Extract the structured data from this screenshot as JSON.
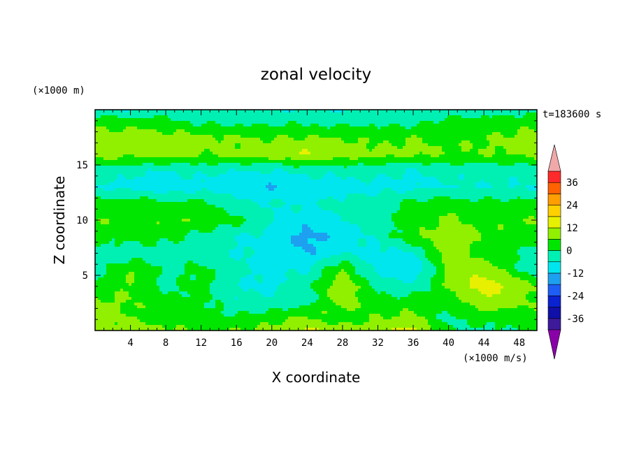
{
  "chart_data": {
    "type": "heatmap",
    "title": "zonal velocity",
    "xlabel": "X coordinate",
    "ylabel": "Z coordinate",
    "x_units": "(×1000 m/s)",
    "y_units": "(×1000 m)",
    "time_label": "t=183600 s",
    "xlim": [
      0,
      50
    ],
    "ylim": [
      0,
      20
    ],
    "x_ticks": [
      4,
      8,
      12,
      16,
      20,
      24,
      28,
      32,
      36,
      40,
      44,
      48
    ],
    "y_ticks": [
      5,
      10,
      15
    ],
    "colorbar": {
      "ticks": [
        36,
        24,
        12,
        0,
        -12,
        -24,
        -36
      ],
      "levels": [
        -42,
        -36,
        -30,
        -24,
        -18,
        -12,
        -6,
        0,
        6,
        12,
        18,
        24,
        30,
        36,
        42
      ],
      "colors": [
        "#7a0096",
        "#3d1a9a",
        "#1010a8",
        "#0a22d0",
        "#1e5ef5",
        "#1ea0f0",
        "#00e6ee",
        "#00f0b4",
        "#00e600",
        "#90f000",
        "#e6f000",
        "#ffd000",
        "#ff9e00",
        "#ff6200",
        "#ff2a2a",
        "#f0a0a8"
      ],
      "under_color": "#8a00a8",
      "over_color": "#f0a8a8"
    },
    "z_grid": {
      "nx": 13,
      "x": [
        0,
        4,
        8,
        12,
        16,
        20,
        24,
        28,
        32,
        36,
        40,
        44,
        50
      ],
      "z": [
        0,
        1,
        2.5,
        4,
        5.5,
        7,
        8.5,
        10,
        11.5,
        13,
        14.5,
        16,
        17.5,
        19,
        20
      ],
      "values": [
        [
          6,
          10,
          8,
          4,
          6,
          8,
          13,
          8,
          10,
          14,
          2,
          -2,
          2
        ],
        [
          8,
          6,
          4,
          2,
          2,
          4,
          8,
          3,
          6,
          8,
          -2,
          2,
          2
        ],
        [
          7,
          6,
          2,
          2,
          -4,
          -4,
          -2,
          9,
          2,
          3,
          2,
          10,
          6
        ],
        [
          2,
          6,
          -2,
          2,
          -6,
          -8,
          -2,
          11,
          -2,
          -4,
          6,
          16,
          6
        ],
        [
          -4,
          6,
          -2,
          2,
          -4,
          -8,
          -6,
          6,
          -8,
          -12,
          8,
          10,
          -4
        ],
        [
          -2,
          -4,
          -2,
          -4,
          -6,
          -8,
          -12,
          -6,
          -8,
          -6,
          10,
          2,
          -2
        ],
        [
          2,
          2,
          2,
          -2,
          -6,
          -8,
          -14,
          -10,
          -4,
          4,
          12,
          6,
          2
        ],
        [
          6,
          4,
          6,
          4,
          2,
          -6,
          -10,
          -6,
          -2,
          2,
          8,
          4,
          6
        ],
        [
          2,
          4,
          2,
          2,
          -4,
          -6,
          -6,
          -4,
          -2,
          2,
          4,
          2,
          2
        ],
        [
          -6,
          -8,
          -10,
          -8,
          -10,
          -12,
          -10,
          -8,
          -8,
          -8,
          -6,
          -6,
          -6
        ],
        [
          -2,
          -4,
          -6,
          -4,
          -6,
          -6,
          -4,
          -4,
          -4,
          -6,
          -4,
          -4,
          -4
        ],
        [
          10,
          8,
          10,
          6,
          8,
          10,
          12,
          10,
          8,
          8,
          6,
          6,
          8
        ],
        [
          8,
          10,
          8,
          8,
          6,
          6,
          6,
          6,
          4,
          6,
          4,
          6,
          8
        ],
        [
          4,
          2,
          2,
          -2,
          -2,
          -2,
          -2,
          -2,
          -2,
          -2,
          2,
          2,
          4
        ],
        [
          -4,
          -6,
          -4,
          -4,
          -4,
          -6,
          -6,
          -6,
          -4,
          -4,
          -4,
          -4,
          -2
        ]
      ]
    }
  }
}
